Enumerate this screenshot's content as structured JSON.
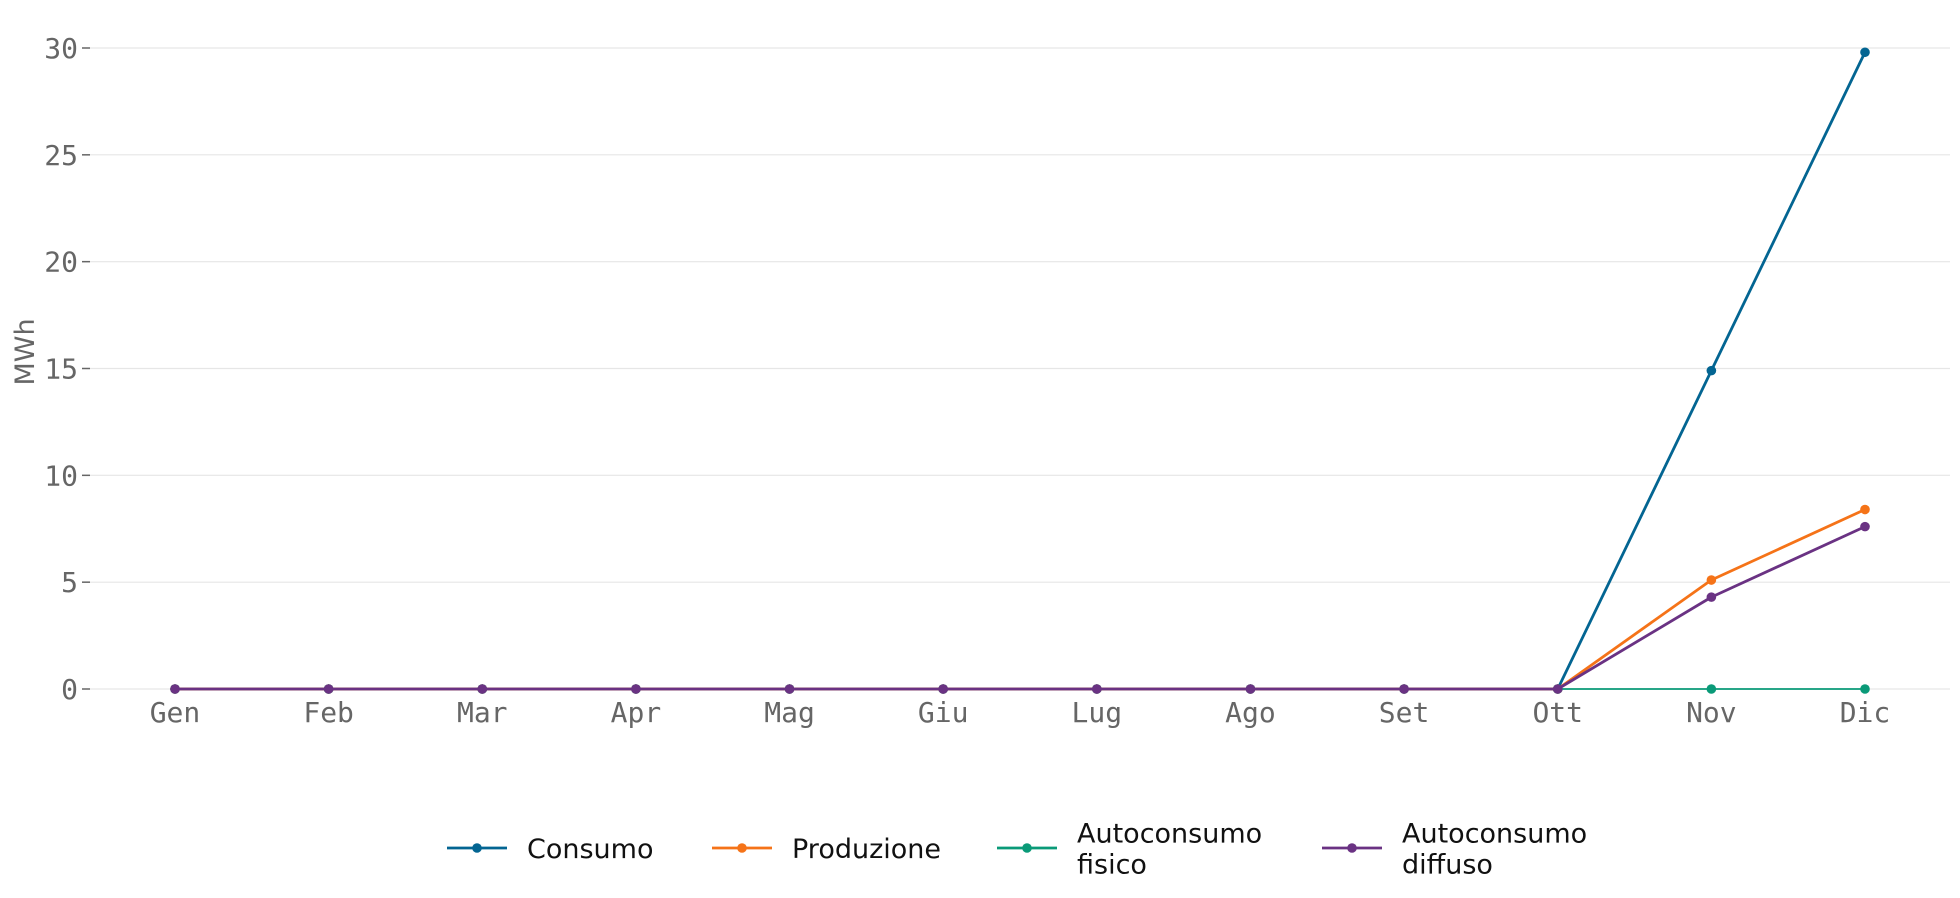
{
  "chart_data": {
    "type": "line",
    "categories": [
      "Gen",
      "Feb",
      "Mar",
      "Apr",
      "Mag",
      "Giu",
      "Lug",
      "Ago",
      "Set",
      "Ott",
      "Nov",
      "Dic"
    ],
    "series": [
      {
        "name": "Consumo",
        "color": "#036592",
        "values": [
          0,
          0,
          0,
          0,
          0,
          0,
          0,
          0,
          0,
          0,
          14.9,
          29.8
        ]
      },
      {
        "name": "Produzione",
        "color": "#f57318",
        "values": [
          0,
          0,
          0,
          0,
          0,
          0,
          0,
          0,
          0,
          0,
          5.1,
          8.4
        ]
      },
      {
        "name": "Autoconsumo fisico",
        "color": "#0a9a78",
        "values": [
          0,
          0,
          0,
          0,
          0,
          0,
          0,
          0,
          0,
          0,
          0,
          0
        ]
      },
      {
        "name": "Autoconsumo diffuso",
        "color": "#6a3283",
        "values": [
          0,
          0,
          0,
          0,
          0,
          0,
          0,
          0,
          0,
          0,
          4.3,
          7.6
        ]
      }
    ],
    "legend_lines": [
      [
        "Consumo"
      ],
      [
        "Produzione"
      ],
      [
        "Autoconsumo",
        "fisico"
      ],
      [
        "Autoconsumo",
        "diffuso"
      ]
    ],
    "yticks": [
      0,
      5,
      10,
      15,
      20,
      25,
      30
    ],
    "ylim": [
      0,
      31
    ],
    "xlabel": "",
    "ylabel": "MWh",
    "grid": "horizontal",
    "legend_position": "bottom-center"
  }
}
